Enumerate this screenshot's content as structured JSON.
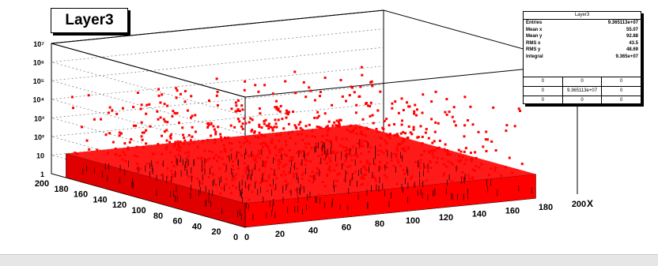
{
  "chart_data": {
    "type": "scatter",
    "title": "Layer3",
    "xlabel": "X",
    "ylabel": "",
    "xlim": [
      0,
      200
    ],
    "ylim": [
      0,
      200
    ],
    "zscale": "log",
    "x_ticks": [
      "0",
      "20",
      "40",
      "60",
      "80",
      "100",
      "120",
      "140",
      "160",
      "180",
      "200"
    ],
    "y_ticks": [
      "0",
      "20",
      "40",
      "60",
      "80",
      "100",
      "120",
      "140",
      "160",
      "180",
      "200"
    ],
    "z_ticks": [
      "1",
      "10",
      "10²",
      "10³",
      "10⁴",
      "10⁵",
      "10⁶",
      "10⁷"
    ],
    "marker_color": "#ff0000",
    "stats": {
      "title": "Layer3",
      "rows": [
        {
          "label": "Entries",
          "value": "9.365113e+07"
        },
        {
          "label": "Mean x",
          "value": "55.07"
        },
        {
          "label": "Mean y",
          "value": "92.88"
        },
        {
          "label": "RMS x",
          "value": "43.5"
        },
        {
          "label": "RMS y",
          "value": "48.69"
        },
        {
          "label": "Integral",
          "value": "9.365e+07"
        }
      ],
      "grid": [
        [
          "0",
          "0",
          "0"
        ],
        [
          "0",
          "9.365113e+07",
          "0"
        ],
        [
          "0",
          "0",
          "0"
        ]
      ]
    }
  }
}
